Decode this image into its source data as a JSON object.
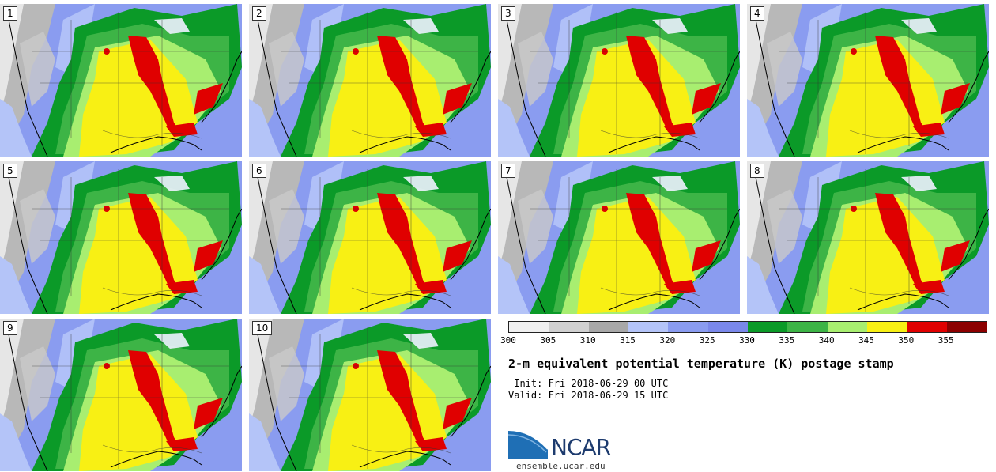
{
  "stamps": [
    {
      "label": "1"
    },
    {
      "label": "2"
    },
    {
      "label": "3"
    },
    {
      "label": "4"
    },
    {
      "label": "5"
    },
    {
      "label": "6"
    },
    {
      "label": "7"
    },
    {
      "label": "8"
    },
    {
      "label": "9"
    },
    {
      "label": "10"
    }
  ],
  "colorbar": {
    "colors": [
      "#f0f0f0",
      "#d0d0d0",
      "#a8a8a8",
      "#b4c4f8",
      "#8a9cf0",
      "#7a88ea",
      "#0b9a28",
      "#3db446",
      "#a8ee70",
      "#f8f014",
      "#e00000",
      "#8c0000"
    ],
    "ticks": [
      "300",
      "305",
      "310",
      "315",
      "320",
      "325",
      "330",
      "335",
      "340",
      "345",
      "350",
      "355"
    ]
  },
  "title": "2-m equivalent potential temperature (K) postage stamp",
  "init_line": " Init: Fri 2018-06-29 00 UTC",
  "valid_line": "Valid: Fri 2018-06-29 15 UTC",
  "logo": {
    "text": "NCAR",
    "color": "#1d3b6e"
  },
  "site": "ensemble.ucar.edu"
}
